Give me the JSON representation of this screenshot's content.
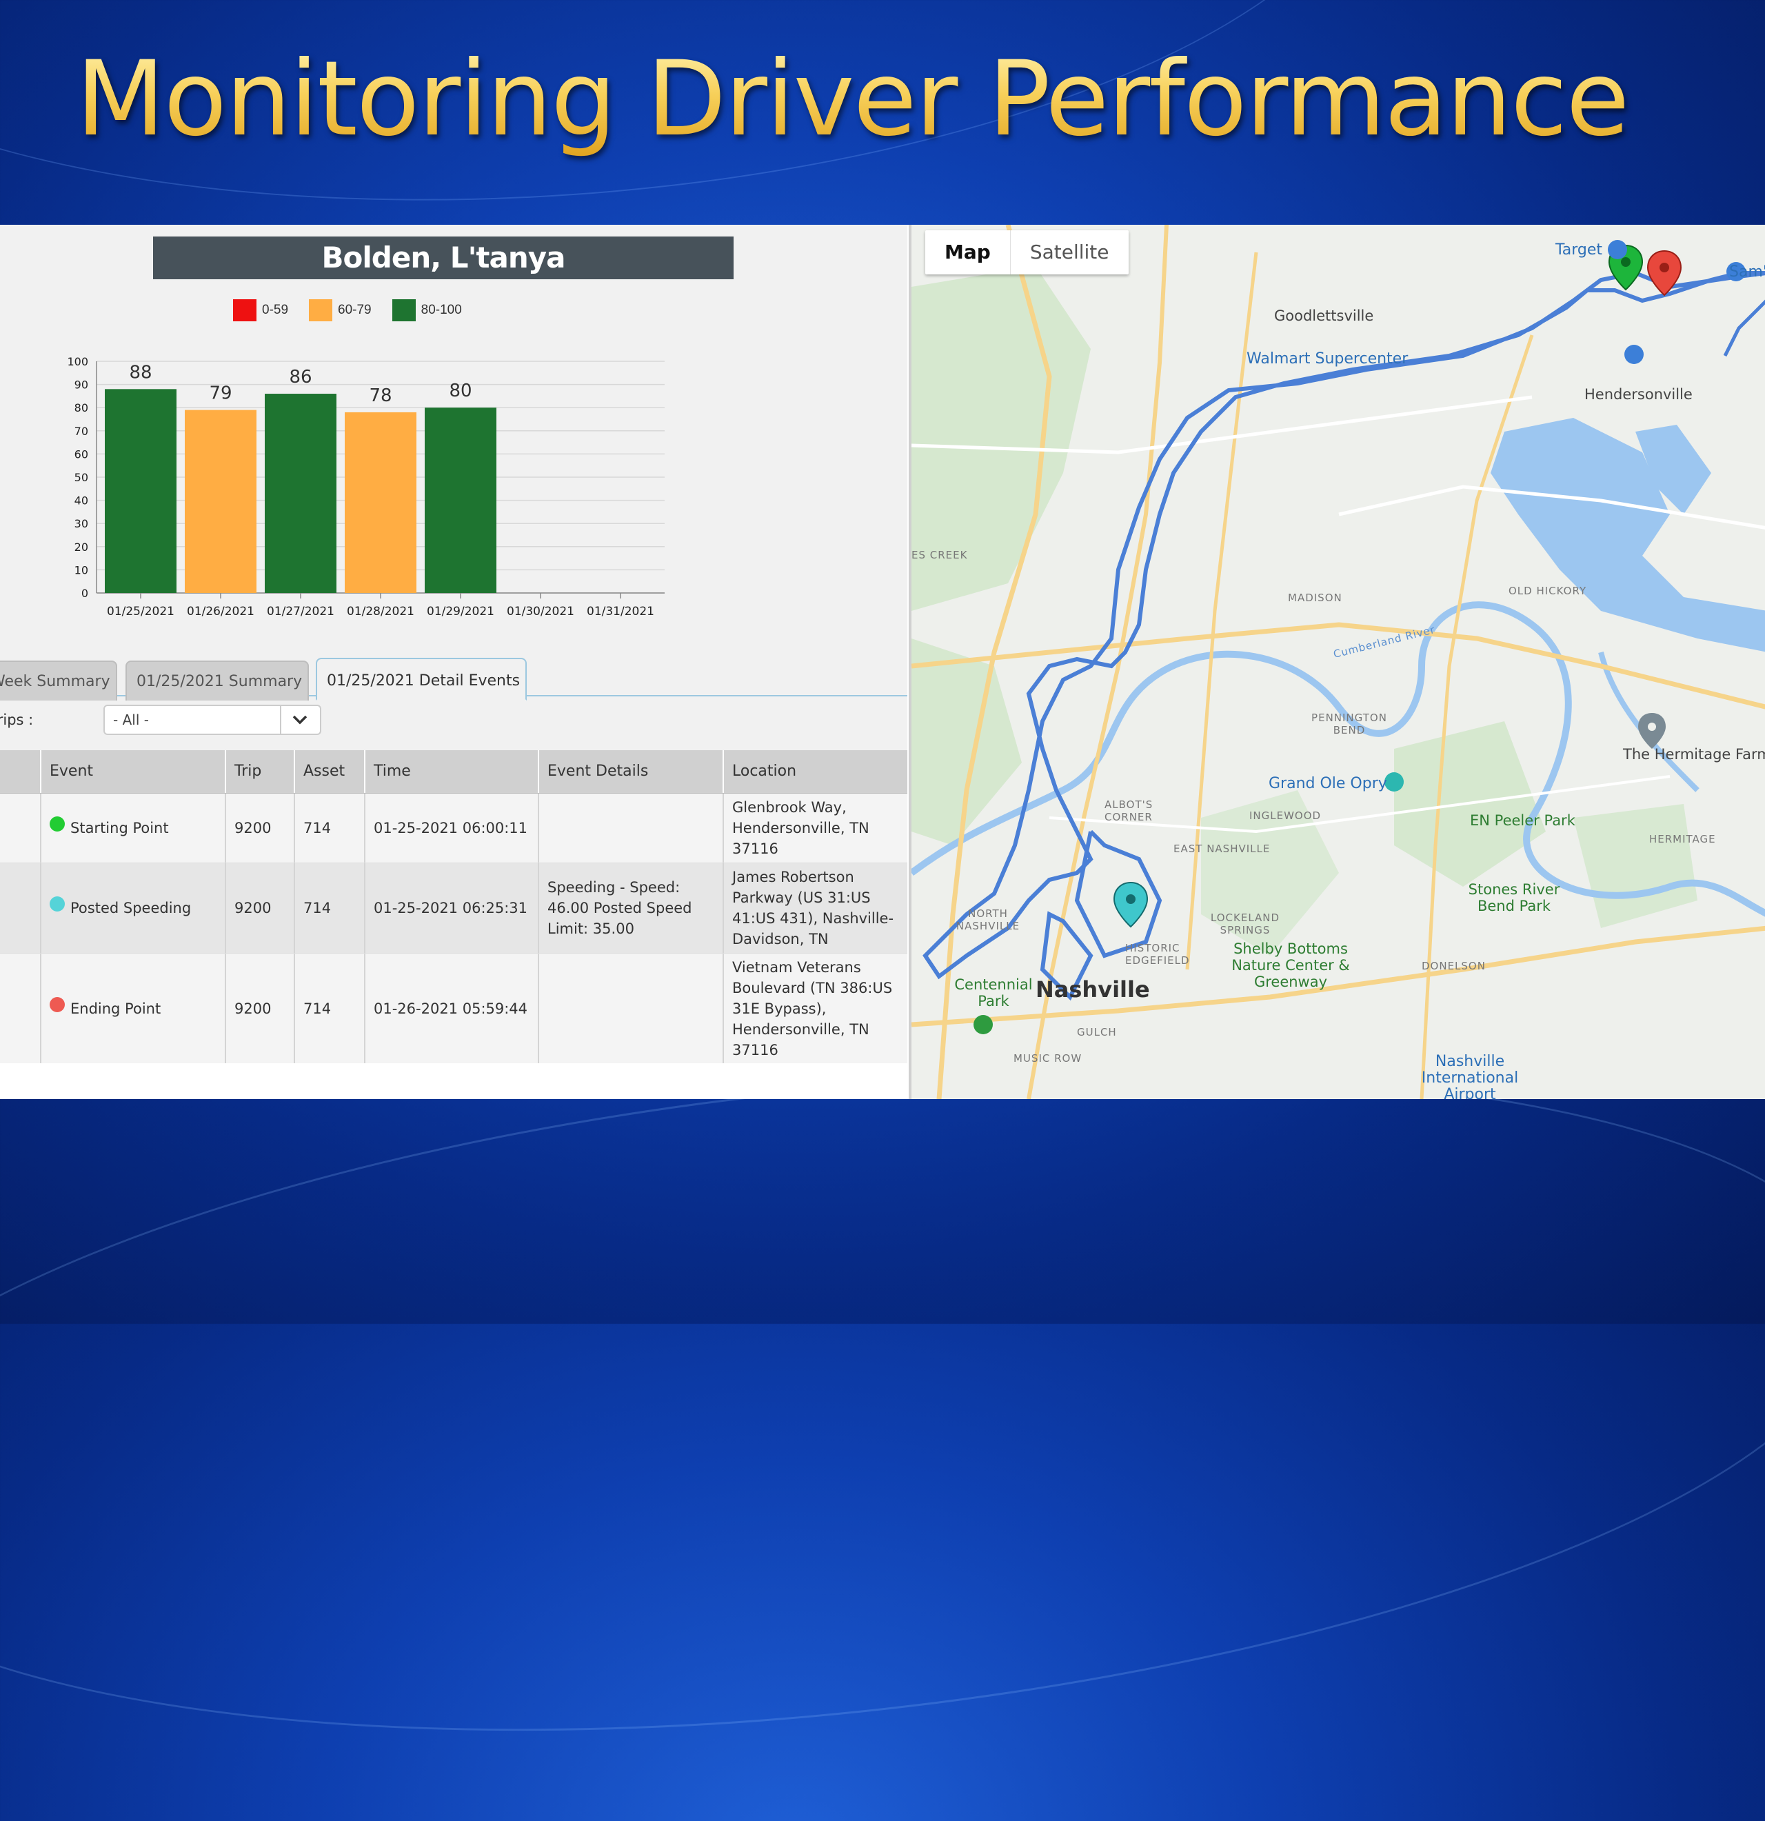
{
  "slide": {
    "title": "Monitoring Driver Performance"
  },
  "driver_panel": {
    "name": "Bolden, L'tanya",
    "legend": [
      {
        "label": "0-59",
        "color": "#ee1111"
      },
      {
        "label": "60-79",
        "color": "#ffad43"
      },
      {
        "label": "80-100",
        "color": "#1e7430"
      }
    ]
  },
  "chart_data": {
    "type": "bar",
    "title": "Bolden, L'tanya",
    "categories": [
      "01/25/2021",
      "01/26/2021",
      "01/27/2021",
      "01/28/2021",
      "01/29/2021",
      "01/30/2021",
      "01/31/2021"
    ],
    "values": [
      88,
      79,
      86,
      78,
      80,
      null,
      null
    ],
    "colors": [
      "#1e7430",
      "#ffad43",
      "#1e7430",
      "#ffad43",
      "#1e7430",
      null,
      null
    ],
    "ylim": [
      0,
      100
    ],
    "yticks": [
      0,
      10,
      20,
      30,
      40,
      50,
      60,
      70,
      80,
      90,
      100
    ],
    "grid": true,
    "legend_position": "top"
  },
  "tabs": [
    {
      "label": "Week Summary"
    },
    {
      "label": "01/25/2021 Summary"
    },
    {
      "label": "01/25/2021 Detail Events",
      "active": true
    }
  ],
  "filter": {
    "label": "Trips :",
    "value": "- All -"
  },
  "events_table": {
    "columns": [
      "Event",
      "Trip",
      "Asset",
      "Time",
      "Event Details",
      "Location"
    ],
    "rows": [
      {
        "dot_color": "#22cc33",
        "event": "Starting Point",
        "trip": "9200",
        "asset": "714",
        "time": "01-25-2021 06:00:11",
        "details": "",
        "location": "Glenbrook Way, Hendersonville, TN 37116"
      },
      {
        "dot_color": "#55d3d8",
        "event": "Posted Speeding",
        "trip": "9200",
        "asset": "714",
        "time": "01-25-2021 06:25:31",
        "details": "Speeding - Speed: 46.00 Posted Speed Limit: 35.00",
        "location": "James Robertson Parkway (US 31:US 41:US 431), Nashville-Davidson, TN"
      },
      {
        "dot_color": "#ee5a52",
        "event": "Ending Point",
        "trip": "9200",
        "asset": "714",
        "time": "01-26-2021 05:59:44",
        "details": "",
        "location": "Vietnam Veterans Boulevard (TN 386:US 31E Bypass), Hendersonville, TN 37116"
      }
    ]
  },
  "map": {
    "toggle": {
      "map": "Map",
      "satellite": "Satellite"
    },
    "labels": {
      "target": "Target",
      "sams": "Sam's",
      "goodlettsville": "Goodlettsville",
      "walmart": "Walmart Supercenter",
      "hendersonville": "Hendersonville",
      "madison": "MADISON",
      "old_hickory": "OLD HICKORY",
      "es_creek": "ES CREEK",
      "pennington_bend": "PENNINGTON BEND",
      "grand_ole_opry": "Grand Ole Opry",
      "inglewood": "INGLEWOOD",
      "east_nashville": "EAST NASHVILLE",
      "hermitage_farm": "The Hermitage Farm",
      "en_peeler": "EN Peeler Park",
      "hermitage": "HERMITAGE",
      "stones_river": "Stones River Bend Park",
      "lockeland": "LOCKELAND SPRINGS",
      "north_nashville": "NORTH NASHVILLE",
      "historic_edgefield": "HISTORIC EDGEFIELD",
      "shelby_bottoms": "Shelby Bottoms Nature Center & Greenway",
      "centennial_park": "Centennial Park",
      "nashville": "Nashville",
      "gulch": "GULCH",
      "music_row": "MUSIC ROW",
      "donelson": "DONELSON",
      "airport": "Nashville International Airport",
      "alcotts_corner": "ALBOT'S CORNER",
      "cumberland_river": "Cumberland River"
    }
  }
}
